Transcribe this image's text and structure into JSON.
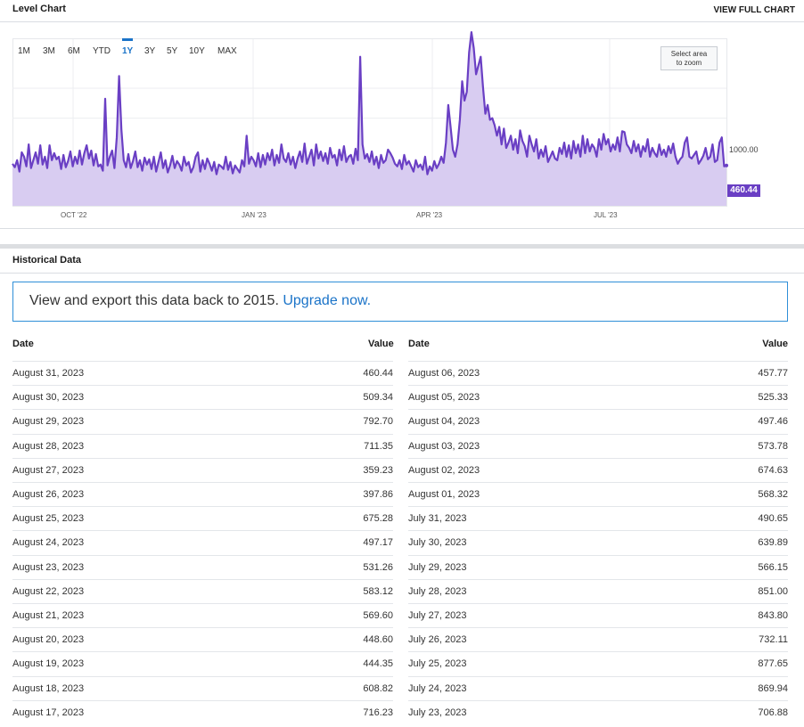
{
  "level_chart": {
    "title": "Level Chart",
    "view_full_label": "VIEW FULL CHART",
    "ranges": [
      "1M",
      "3M",
      "6M",
      "YTD",
      "1Y",
      "3Y",
      "5Y",
      "10Y",
      "MAX"
    ],
    "active_range": "1Y",
    "zoom_hint": "Select area to zoom",
    "zoom_hint_line1": "Select area",
    "zoom_hint_line2": "to zoom",
    "y_tick": "1000.00",
    "last_value": "460.44",
    "x_ticks": [
      "OCT '22",
      "JAN '23",
      "APR '23",
      "JUL '23"
    ],
    "colors": {
      "line": "#6a3fc4",
      "fill": "#d8ccf1",
      "accent": "#1a73c8"
    }
  },
  "chart_data": {
    "type": "area",
    "title": "Level Chart",
    "x_start": "2022-09-01",
    "x_end": "2023-08-31",
    "ylim": [
      0,
      1900
    ],
    "y_ticks": [
      1000
    ],
    "x_ticks": [
      "OCT '22",
      "JAN '23",
      "APR '23",
      "JUL '23"
    ],
    "grid": true,
    "series": [
      {
        "values": [
          480,
          440,
          520,
          390,
          610,
          560,
          450,
          700,
          430,
          520,
          610,
          480,
          690,
          470,
          560,
          430,
          690,
          520,
          600,
          530,
          560,
          420,
          580,
          440,
          510,
          620,
          450,
          560,
          480,
          630,
          470,
          600,
          690,
          540,
          630,
          460,
          590,
          450,
          470,
          400,
          1220,
          460,
          560,
          630,
          430,
          780,
          1480,
          870,
          520,
          440,
          590,
          430,
          510,
          620,
          440,
          520,
          400,
          550,
          470,
          530,
          420,
          560,
          390,
          500,
          610,
          430,
          520,
          380,
          460,
          570,
          430,
          510,
          470,
          400,
          560,
          460,
          500,
          380,
          440,
          560,
          610,
          390,
          520,
          420,
          540,
          480,
          400,
          500,
          360,
          470,
          450,
          420,
          560,
          410,
          500,
          370,
          460,
          420,
          380,
          520,
          450,
          800,
          480,
          560,
          520,
          450,
          600,
          440,
          580,
          470,
          600,
          520,
          640,
          460,
          580,
          490,
          700,
          540,
          500,
          600,
          470,
          560,
          430,
          540,
          620,
          500,
          710,
          480,
          560,
          640,
          460,
          700,
          540,
          620,
          510,
          600,
          480,
          660,
          550,
          580,
          460,
          640,
          520,
          680,
          500,
          560,
          580,
          480,
          650,
          520,
          1700,
          700,
          540,
          590,
          500,
          620,
          470,
          560,
          430,
          580,
          490,
          520,
          640,
          600,
          550,
          480,
          450,
          520,
          420,
          580,
          470,
          510,
          450,
          390,
          520,
          440,
          470,
          410,
          560,
          360,
          450,
          400,
          510,
          430,
          480,
          560,
          490,
          720,
          1150,
          900,
          640,
          560,
          700,
          980,
          1420,
          1200,
          1300,
          1750,
          1980,
          1800,
          1500,
          1600,
          1700,
          1350,
          1050,
          1150,
          980,
          1000,
          920,
          800,
          900,
          700,
          880,
          660,
          720,
          800,
          640,
          760,
          600,
          860,
          740,
          680,
          560,
          800,
          700,
          620,
          760,
          540,
          640,
          560,
          680,
          500,
          560,
          620,
          540,
          520,
          660,
          590,
          720,
          560,
          690,
          540,
          740,
          600,
          700,
          560,
          800,
          600,
          760,
          620,
          700,
          660,
          560,
          760,
          640,
          820,
          700,
          760,
          620,
          700,
          640,
          780,
          620,
          850,
          840,
          700,
          660,
          600,
          740,
          620,
          700,
          560,
          680,
          620,
          760,
          560,
          660,
          600,
          560,
          700,
          580,
          640,
          560,
          680,
          600,
          710,
          560,
          480,
          530,
          560,
          720,
          780,
          560,
          540,
          580,
          620,
          480,
          520,
          570,
          660,
          530,
          560,
          700,
          500,
          520,
          720,
          780,
          450,
          460
        ]
      }
    ]
  },
  "historical": {
    "title": "Historical Data",
    "banner_text": "View and export this data back to 2015.",
    "banner_link": "Upgrade now.",
    "headers": {
      "date": "Date",
      "value": "Value"
    },
    "left_rows": [
      {
        "date": "August 31, 2023",
        "value": "460.44"
      },
      {
        "date": "August 30, 2023",
        "value": "509.34"
      },
      {
        "date": "August 29, 2023",
        "value": "792.70"
      },
      {
        "date": "August 28, 2023",
        "value": "711.35"
      },
      {
        "date": "August 27, 2023",
        "value": "359.23"
      },
      {
        "date": "August 26, 2023",
        "value": "397.86"
      },
      {
        "date": "August 25, 2023",
        "value": "675.28"
      },
      {
        "date": "August 24, 2023",
        "value": "497.17"
      },
      {
        "date": "August 23, 2023",
        "value": "531.26"
      },
      {
        "date": "August 22, 2023",
        "value": "583.12"
      },
      {
        "date": "August 21, 2023",
        "value": "569.60"
      },
      {
        "date": "August 20, 2023",
        "value": "448.60"
      },
      {
        "date": "August 19, 2023",
        "value": "444.35"
      },
      {
        "date": "August 18, 2023",
        "value": "608.82"
      },
      {
        "date": "August 17, 2023",
        "value": "716.23"
      }
    ],
    "right_rows": [
      {
        "date": "August 06, 2023",
        "value": "457.77"
      },
      {
        "date": "August 05, 2023",
        "value": "525.33"
      },
      {
        "date": "August 04, 2023",
        "value": "497.46"
      },
      {
        "date": "August 03, 2023",
        "value": "573.78"
      },
      {
        "date": "August 02, 2023",
        "value": "674.63"
      },
      {
        "date": "August 01, 2023",
        "value": "568.32"
      },
      {
        "date": "July 31, 2023",
        "value": "490.65"
      },
      {
        "date": "July 30, 2023",
        "value": "639.89"
      },
      {
        "date": "July 29, 2023",
        "value": "566.15"
      },
      {
        "date": "July 28, 2023",
        "value": "851.00"
      },
      {
        "date": "July 27, 2023",
        "value": "843.80"
      },
      {
        "date": "July 26, 2023",
        "value": "732.11"
      },
      {
        "date": "July 25, 2023",
        "value": "877.65"
      },
      {
        "date": "July 24, 2023",
        "value": "869.94"
      },
      {
        "date": "July 23, 2023",
        "value": "706.88"
      }
    ]
  }
}
